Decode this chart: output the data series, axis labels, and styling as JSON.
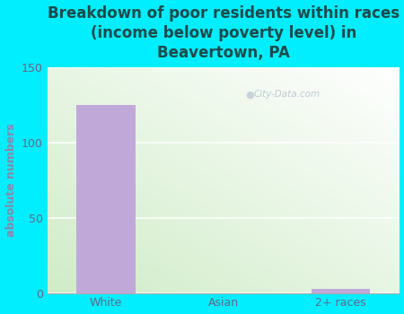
{
  "title": "Breakdown of poor residents within races\n(income below poverty level) in\nBeavertown, PA",
  "categories": [
    "White",
    "Asian",
    "2+ races"
  ],
  "values": [
    125,
    0,
    3
  ],
  "bar_color": "#c0a8d8",
  "ylabel": "absolute numbers",
  "ylim": [
    0,
    150
  ],
  "yticks": [
    0,
    50,
    100,
    150
  ],
  "background_outer": "#00eeff",
  "title_fontsize": 12,
  "label_fontsize": 9,
  "tick_fontsize": 9,
  "title_color": "#1a4a4a",
  "ylabel_color": "#8888aa",
  "tick_color": "#666688",
  "watermark": "City-Data.com"
}
